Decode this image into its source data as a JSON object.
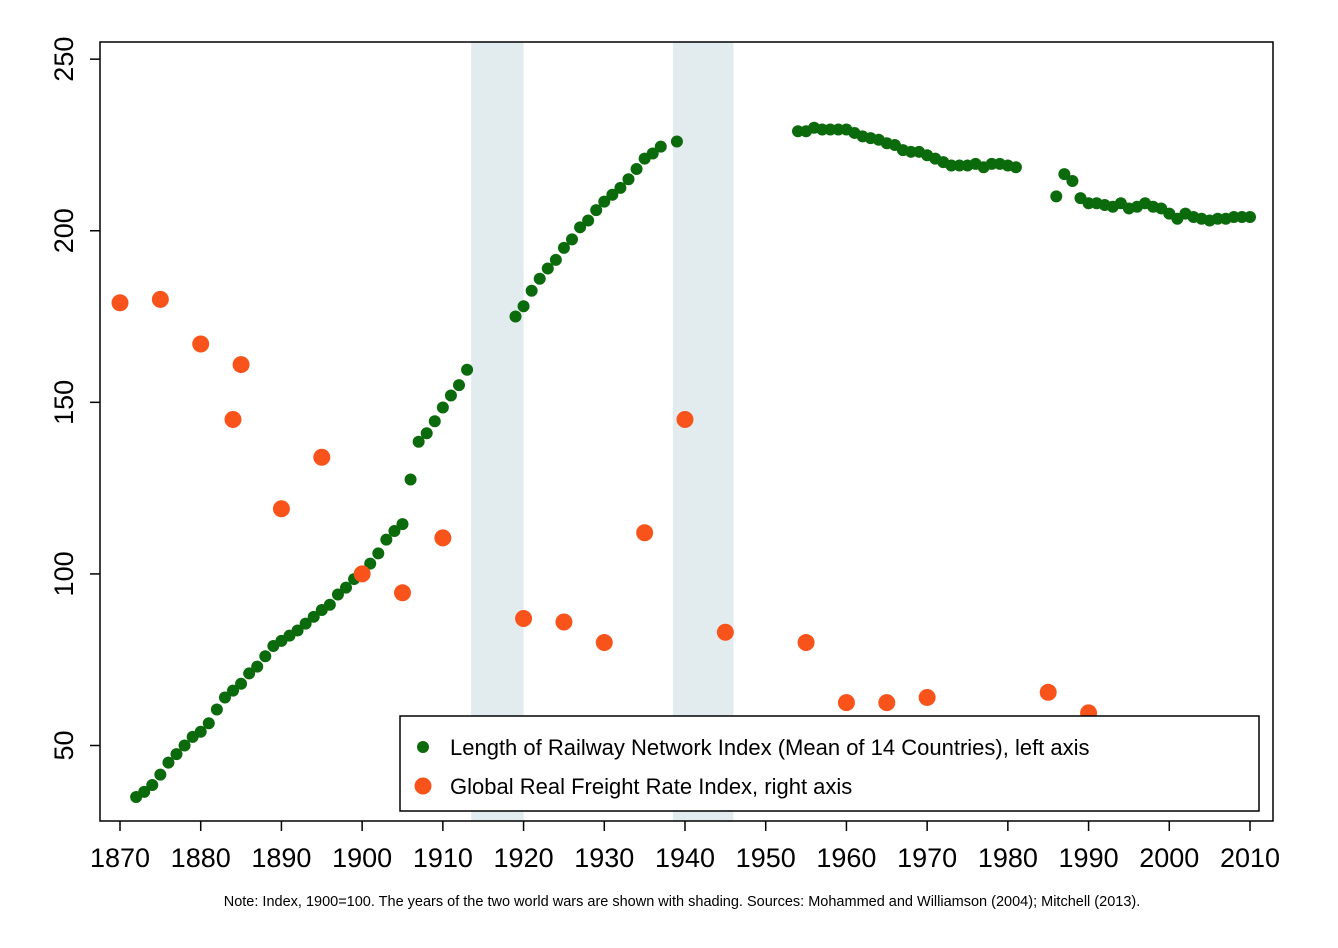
{
  "chart_data": {
    "type": "scatter",
    "note": "Note: Index, 1900=100. The years of the two world wars are shown with shading. Sources: Mohammed and Williamson (2004); Mitchell (2013).",
    "xlim": [
      1870,
      2010
    ],
    "xticks": [
      "1870",
      "1880",
      "1890",
      "1900",
      "1910",
      "1920",
      "1930",
      "1940",
      "1950",
      "1960",
      "1970",
      "1980",
      "1990",
      "2000",
      "2010"
    ],
    "ylim": [
      28,
      255
    ],
    "yticks": [
      "50",
      "100",
      "150",
      "200",
      "250"
    ],
    "shaded_periods": [
      {
        "label": "World War I",
        "from": 1913.5,
        "to": 1920
      },
      {
        "label": "World War II",
        "from": 1938.5,
        "to": 1946
      }
    ],
    "legend": [
      {
        "label": "Length of Railway Network Index (Mean of 14 Countries), left axis",
        "color": "#0b6a0b"
      },
      {
        "label": "Global Real Freight Rate Index, right axis",
        "color": "#f9531c"
      }
    ],
    "series": [
      {
        "name": "Length of Railway Network Index (Mean of 14 Countries), left axis",
        "color": "#0b6a0b",
        "points": [
          [
            1872,
            35
          ],
          [
            1873,
            36.5
          ],
          [
            1874,
            38.5
          ],
          [
            1875,
            41.5
          ],
          [
            1876,
            45
          ],
          [
            1877,
            47.5
          ],
          [
            1878,
            50
          ],
          [
            1879,
            52.5
          ],
          [
            1880,
            54
          ],
          [
            1881,
            56.5
          ],
          [
            1882,
            60.5
          ],
          [
            1883,
            64
          ],
          [
            1884,
            66
          ],
          [
            1885,
            68
          ],
          [
            1886,
            71
          ],
          [
            1887,
            73
          ],
          [
            1888,
            76
          ],
          [
            1889,
            79
          ],
          [
            1890,
            80.5
          ],
          [
            1891,
            82
          ],
          [
            1892,
            83.5
          ],
          [
            1893,
            85.5
          ],
          [
            1894,
            87.5
          ],
          [
            1895,
            89.5
          ],
          [
            1896,
            91
          ],
          [
            1897,
            94
          ],
          [
            1898,
            96
          ],
          [
            1899,
            98.5
          ],
          [
            1900,
            100
          ],
          [
            1901,
            103
          ],
          [
            1902,
            106
          ],
          [
            1903,
            110
          ],
          [
            1904,
            112.5
          ],
          [
            1905,
            114.5
          ],
          [
            1906,
            127.5
          ],
          [
            1907,
            138.5
          ],
          [
            1908,
            141
          ],
          [
            1909,
            144.5
          ],
          [
            1910,
            148.5
          ],
          [
            1911,
            152
          ],
          [
            1912,
            155
          ],
          [
            1913,
            159.5
          ],
          [
            1919,
            175
          ],
          [
            1920,
            178
          ],
          [
            1921,
            182.5
          ],
          [
            1922,
            186
          ],
          [
            1923,
            189
          ],
          [
            1924,
            191.5
          ],
          [
            1925,
            195
          ],
          [
            1926,
            197.5
          ],
          [
            1927,
            201
          ],
          [
            1928,
            203
          ],
          [
            1929,
            206
          ],
          [
            1930,
            208.5
          ],
          [
            1931,
            210.5
          ],
          [
            1932,
            212.5
          ],
          [
            1933,
            215
          ],
          [
            1934,
            218
          ],
          [
            1935,
            221
          ],
          [
            1936,
            222.5
          ],
          [
            1937,
            224.5
          ],
          [
            1939,
            226
          ],
          [
            1954,
            229
          ],
          [
            1955,
            229
          ],
          [
            1956,
            230
          ],
          [
            1957,
            229.5
          ],
          [
            1958,
            229.5
          ],
          [
            1959,
            229.5
          ],
          [
            1960,
            229.5
          ],
          [
            1961,
            228.5
          ],
          [
            1962,
            227.5
          ],
          [
            1963,
            227
          ],
          [
            1964,
            226.5
          ],
          [
            1965,
            225.5
          ],
          [
            1966,
            225
          ],
          [
            1967,
            223.5
          ],
          [
            1968,
            223
          ],
          [
            1969,
            223
          ],
          [
            1970,
            222
          ],
          [
            1971,
            221
          ],
          [
            1972,
            220
          ],
          [
            1973,
            219
          ],
          [
            1974,
            219
          ],
          [
            1975,
            219
          ],
          [
            1976,
            219.5
          ],
          [
            1977,
            218.5
          ],
          [
            1978,
            219.5
          ],
          [
            1979,
            219.5
          ],
          [
            1980,
            219
          ],
          [
            1981,
            218.5
          ],
          [
            1986,
            210
          ],
          [
            1987,
            216.5
          ],
          [
            1988,
            214.5
          ],
          [
            1989,
            209.5
          ],
          [
            1990,
            208
          ],
          [
            1991,
            208
          ],
          [
            1992,
            207.5
          ],
          [
            1993,
            207
          ],
          [
            1994,
            208
          ],
          [
            1995,
            206.5
          ],
          [
            1996,
            207
          ],
          [
            1997,
            208
          ],
          [
            1998,
            207
          ],
          [
            1999,
            206.5
          ],
          [
            2000,
            205
          ],
          [
            2001,
            203.5
          ],
          [
            2002,
            205
          ],
          [
            2003,
            204
          ],
          [
            2004,
            203.5
          ],
          [
            2005,
            203
          ],
          [
            2006,
            203.5
          ],
          [
            2007,
            203.5
          ],
          [
            2008,
            204
          ],
          [
            2009,
            204
          ],
          [
            2010,
            204
          ]
        ]
      },
      {
        "name": "Global Real Freight Rate Index, right axis",
        "color": "#f9531c",
        "points": [
          [
            1870,
            179
          ],
          [
            1875,
            180
          ],
          [
            1880,
            167
          ],
          [
            1884,
            145
          ],
          [
            1885,
            161
          ],
          [
            1890,
            119
          ],
          [
            1895,
            134
          ],
          [
            1900,
            100
          ],
          [
            1905,
            94.5
          ],
          [
            1910,
            110.5
          ],
          [
            1920,
            87
          ],
          [
            1925,
            86
          ],
          [
            1930,
            80
          ],
          [
            1935,
            112
          ],
          [
            1940,
            145
          ],
          [
            1945,
            83
          ],
          [
            1955,
            80
          ],
          [
            1960,
            62.5
          ],
          [
            1965,
            62.5
          ],
          [
            1970,
            64
          ],
          [
            1985,
            65.5
          ],
          [
            1990,
            59.5
          ]
        ]
      }
    ]
  }
}
